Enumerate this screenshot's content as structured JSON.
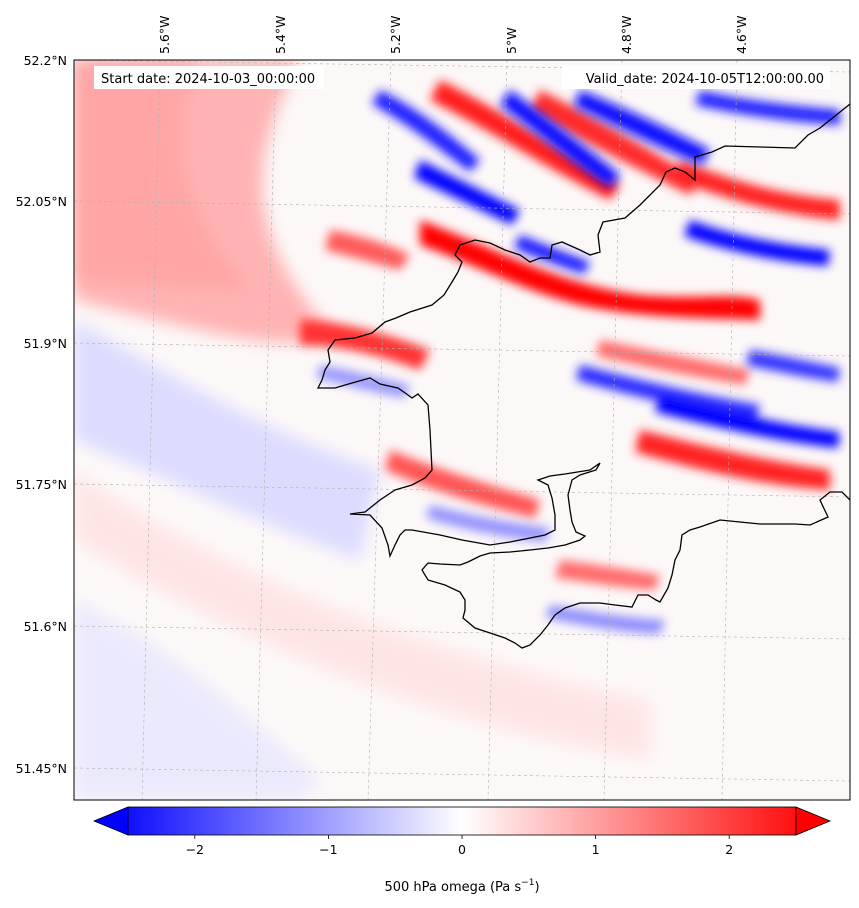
{
  "map": {
    "start_date": "Start date: 2024-10-03_00:00:00",
    "valid_date": "Valid_date: 2024-10-05T12:00:00.00",
    "lon_ticks": [
      "5.6°W",
      "5.4°W",
      "5.2°W",
      "5°W",
      "4.8°W",
      "4.6°W"
    ],
    "lat_ticks": [
      "52.2°N",
      "52.05°N",
      "51.9°N",
      "51.75°N",
      "51.6°N",
      "51.45°N"
    ],
    "field_name": "500 hPa omega",
    "coastline_color": "#000000",
    "gridline_color": "#b0b0b0"
  },
  "colorbar": {
    "label": "500 hPa omega (Pa s",
    "label_exponent": "−1",
    "label_close": ")",
    "ticks": [
      "−2",
      "−1",
      "0",
      "1",
      "2"
    ],
    "tick_values": [
      -2,
      -1,
      0,
      1,
      2
    ],
    "vmin": -2.5,
    "vmax": 2.5,
    "extend": "both",
    "colormap": "bwr",
    "low_color": "#0000ff",
    "mid_color": "#ffffff",
    "high_color": "#ff0000"
  }
}
